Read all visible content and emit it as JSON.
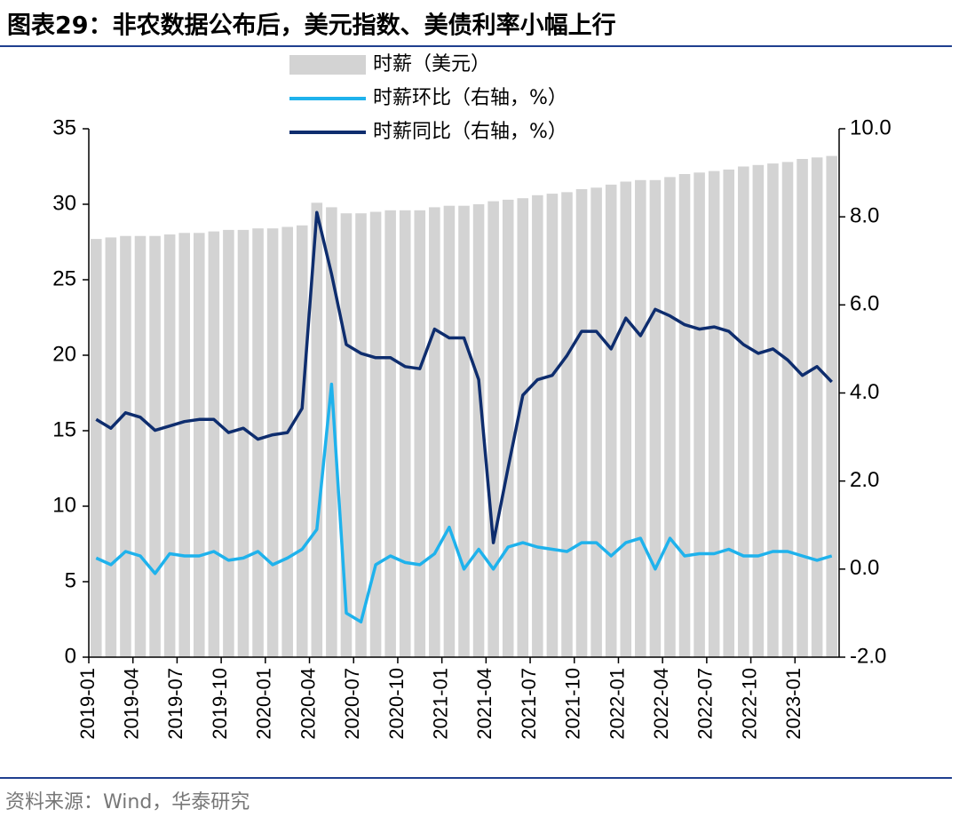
{
  "chart_data": {
    "type": "bar-line",
    "title": "图表29：非农数据公布后，美元指数、美债利率小幅上行",
    "source": "资料来源：Wind，华泰研究",
    "categories": [
      "2019-01",
      null,
      null,
      "2019-04",
      null,
      null,
      "2019-07",
      null,
      null,
      "2019-10",
      null,
      null,
      "2020-01",
      null,
      null,
      "2020-04",
      null,
      null,
      "2020-07",
      null,
      null,
      "2020-10",
      null,
      null,
      "2021-01",
      null,
      null,
      "2021-04",
      null,
      null,
      "2021-07",
      null,
      null,
      "2021-10",
      null,
      null,
      "2022-01",
      null,
      null,
      "2022-04",
      null,
      null,
      "2022-07",
      null,
      null,
      "2022-10",
      null,
      null,
      "2023-01",
      null,
      null
    ],
    "series": [
      {
        "name": "时薪（美元）",
        "type": "bar",
        "color": "#d3d3d3",
        "values": [
          27.7,
          27.8,
          27.9,
          27.9,
          27.9,
          28.0,
          28.1,
          28.1,
          28.2,
          28.3,
          28.3,
          28.4,
          28.4,
          28.5,
          28.6,
          30.1,
          29.8,
          29.4,
          29.4,
          29.5,
          29.6,
          29.6,
          29.6,
          29.8,
          29.9,
          29.9,
          30.0,
          30.2,
          30.3,
          30.4,
          30.6,
          30.7,
          30.8,
          31.0,
          31.1,
          31.3,
          31.5,
          31.6,
          31.6,
          31.8,
          32.0,
          32.1,
          32.2,
          32.3,
          32.5,
          32.6,
          32.7,
          32.8,
          33.0,
          33.1,
          33.2
        ]
      },
      {
        "name": "时薪环比（右轴，%）",
        "type": "line",
        "axis": "y2",
        "color": "#1fb2ec",
        "values": [
          0.25,
          0.1,
          0.4,
          0.3,
          -0.1,
          0.35,
          0.3,
          0.3,
          0.4,
          0.2,
          0.25,
          0.4,
          0.1,
          0.25,
          0.45,
          0.9,
          4.2,
          -1.0,
          -1.2,
          0.1,
          0.3,
          0.15,
          0.1,
          0.35,
          0.95,
          0.0,
          0.45,
          0.0,
          0.5,
          0.6,
          0.5,
          0.45,
          0.4,
          0.6,
          0.6,
          0.3,
          0.6,
          0.7,
          0.0,
          0.7,
          0.3,
          0.35,
          0.35,
          0.45,
          0.3,
          0.3,
          0.4,
          0.4,
          0.3,
          0.2,
          0.3
        ]
      },
      {
        "name": "时薪同比（右轴，%）",
        "type": "line",
        "axis": "y2",
        "color": "#0e2d6e",
        "values": [
          3.4,
          3.2,
          3.55,
          3.45,
          3.15,
          3.25,
          3.35,
          3.4,
          3.4,
          3.1,
          3.2,
          2.95,
          3.05,
          3.1,
          3.65,
          8.1,
          6.7,
          5.1,
          4.9,
          4.8,
          4.8,
          4.6,
          4.55,
          5.45,
          5.25,
          5.25,
          4.3,
          0.6,
          2.3,
          3.95,
          4.3,
          4.4,
          4.85,
          5.4,
          5.4,
          5.0,
          5.7,
          5.3,
          5.9,
          5.75,
          5.55,
          5.45,
          5.5,
          5.4,
          5.1,
          4.9,
          5.0,
          4.75,
          4.4,
          4.6,
          4.25
        ]
      }
    ],
    "ylim": [
      0,
      35
    ],
    "yticks": [
      0,
      5,
      10,
      15,
      20,
      25,
      30,
      35
    ],
    "y2lim": [
      -2,
      10
    ],
    "y2ticks": [
      {
        "value": -2,
        "label": "-2.0"
      },
      {
        "value": 0,
        "label": "0.0"
      },
      {
        "value": 2,
        "label": "2.0"
      },
      {
        "value": 4,
        "label": "4.0"
      },
      {
        "value": 6,
        "label": "6.0"
      },
      {
        "value": 8,
        "label": "8.0"
      },
      {
        "value": 10,
        "label": "10.0"
      }
    ],
    "legend": "top"
  }
}
